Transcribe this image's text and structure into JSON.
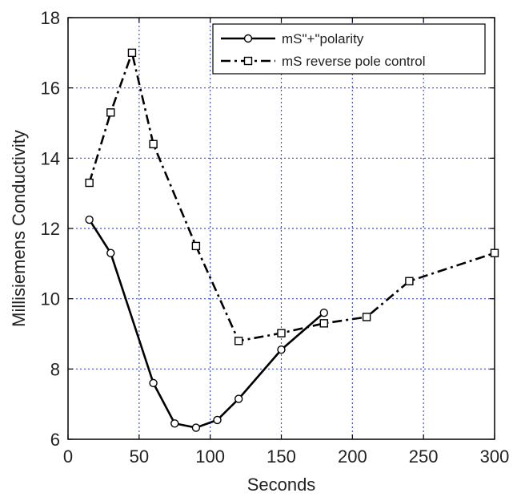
{
  "chart_data": {
    "type": "line",
    "xlabel": "Seconds",
    "ylabel": "Millisiemens Conductivity",
    "xlim": [
      0,
      300
    ],
    "ylim": [
      6,
      18
    ],
    "x_ticks": [
      0,
      50,
      100,
      150,
      200,
      250,
      300
    ],
    "y_ticks": [
      6,
      8,
      10,
      12,
      14,
      16,
      18
    ],
    "grid": "dashed-blue",
    "legend_position": "top-right",
    "series": [
      {
        "name": "mS\"+\"polarity",
        "marker": "circle",
        "line_style": "solid",
        "color": "#000000",
        "x": [
          15,
          30,
          60,
          75,
          90,
          105,
          120,
          150,
          180
        ],
        "y": [
          12.25,
          11.3,
          7.6,
          6.45,
          6.33,
          6.55,
          7.15,
          8.55,
          9.6
        ]
      },
      {
        "name": "mS reverse pole control",
        "marker": "square",
        "line_style": "dash-dot",
        "color": "#000000",
        "x": [
          15,
          30,
          45,
          60,
          90,
          120,
          150,
          180,
          210,
          240,
          300
        ],
        "y": [
          13.3,
          15.3,
          17.0,
          14.4,
          11.5,
          8.8,
          9.02,
          9.3,
          9.48,
          10.5,
          11.3
        ]
      }
    ],
    "colors": {
      "grid": "#3a4fd8",
      "axes": "#000000"
    }
  }
}
